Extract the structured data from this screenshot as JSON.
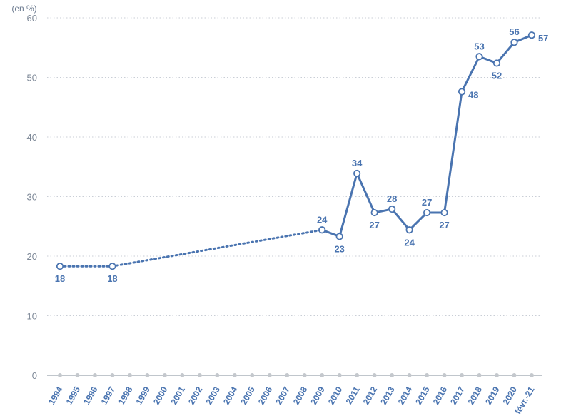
{
  "chart_data": {
    "type": "line",
    "unit_label": "(en %)",
    "title": "",
    "xlabel": "",
    "ylabel": "",
    "ylim": [
      0,
      60
    ],
    "yticks": [
      0,
      10,
      20,
      30,
      40,
      50,
      60
    ],
    "grid": "horizontal dotted",
    "categories": [
      "1994",
      "1995",
      "1996",
      "1997",
      "1998",
      "1999",
      "2000",
      "2001",
      "2002",
      "2003",
      "2004",
      "2005",
      "2006",
      "2007",
      "2008",
      "2009",
      "2010",
      "2011",
      "2012",
      "2013",
      "2014",
      "2015",
      "2016",
      "2017",
      "2018",
      "2019",
      "2020",
      "févr.-21"
    ],
    "series": [
      {
        "values": [
          18.3,
          null,
          null,
          18.3,
          null,
          null,
          null,
          null,
          null,
          null,
          null,
          null,
          null,
          null,
          null,
          24.4,
          23.3,
          33.9,
          27.3,
          27.9,
          24.4,
          27.3,
          27.3,
          47.6,
          53.5,
          52.4,
          55.9,
          57.1
        ],
        "labels": [
          "18",
          null,
          null,
          "18",
          null,
          null,
          null,
          null,
          null,
          null,
          null,
          null,
          null,
          null,
          null,
          "24",
          "23",
          "34",
          "27",
          "28",
          "24",
          "27",
          "27",
          "48",
          "53",
          "52",
          "56",
          "57"
        ],
        "label_position": [
          "below",
          null,
          null,
          "below",
          null,
          null,
          null,
          null,
          null,
          null,
          null,
          null,
          null,
          null,
          null,
          "above",
          "below",
          "above",
          "below",
          "above",
          "below",
          "above",
          "below",
          "right",
          "above",
          "below",
          "above",
          "right"
        ],
        "dotted_segments": [
          [
            0,
            3
          ],
          [
            3,
            15
          ]
        ],
        "color": "#4a74b0"
      }
    ]
  }
}
